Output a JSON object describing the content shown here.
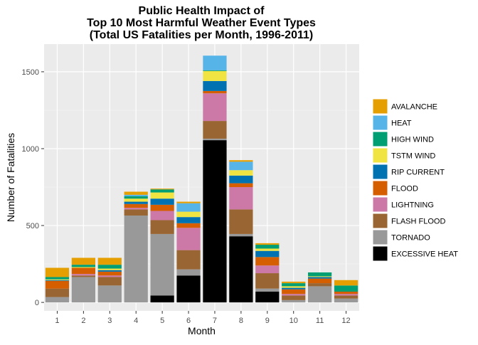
{
  "chart_data": {
    "type": "bar",
    "stacked": true,
    "title": [
      "Public Health Impact of",
      "Top 10 Most Harmful Weather Event Types",
      "(Total US Fatalities per Month, 1996-2011)"
    ],
    "xlabel": "Month",
    "ylabel": "Number of Fatalities",
    "categories": [
      "1",
      "2",
      "3",
      "4",
      "5",
      "6",
      "7",
      "8",
      "9",
      "10",
      "11",
      "12"
    ],
    "y_ticks": [
      0,
      500,
      1000,
      1500
    ],
    "ylim": [
      -55,
      1680
    ],
    "grid": true,
    "legend_position": "right",
    "series": [
      {
        "name": "EXCESSIVE HEAT",
        "color": "#000000",
        "values": [
          0,
          0,
          0,
          0,
          45,
          175,
          1055,
          430,
          70,
          0,
          0,
          0
        ]
      },
      {
        "name": "TORNADO",
        "color": "#999999",
        "values": [
          35,
          165,
          110,
          565,
          400,
          40,
          10,
          15,
          20,
          15,
          105,
          25
        ]
      },
      {
        "name": "FLASH FLOOD",
        "color": "#996633",
        "values": [
          55,
          10,
          55,
          40,
          90,
          125,
          115,
          160,
          100,
          30,
          20,
          20
        ]
      },
      {
        "name": "LIGHTNING",
        "color": "#CC79A7",
        "values": [
          0,
          10,
          10,
          10,
          60,
          145,
          180,
          145,
          50,
          10,
          0,
          10
        ]
      },
      {
        "name": "FLOOD",
        "color": "#D55E00",
        "values": [
          50,
          40,
          25,
          25,
          40,
          30,
          15,
          25,
          55,
          30,
          30,
          15
        ]
      },
      {
        "name": "RIP CURRENT",
        "color": "#0072B2",
        "values": [
          5,
          0,
          10,
          15,
          40,
          40,
          65,
          50,
          40,
          10,
          10,
          0
        ]
      },
      {
        "name": "TSTM WIND",
        "color": "#F0E442",
        "values": [
          5,
          5,
          10,
          20,
          40,
          35,
          65,
          35,
          15,
          10,
          5,
          0
        ]
      },
      {
        "name": "HIGH WIND",
        "color": "#009E73",
        "values": [
          15,
          15,
          25,
          15,
          20,
          0,
          5,
          0,
          25,
          20,
          25,
          40
        ]
      },
      {
        "name": "HEAT",
        "color": "#56B4E9",
        "values": [
          0,
          0,
          0,
          10,
          0,
          55,
          95,
          55,
          0,
          0,
          0,
          0
        ]
      },
      {
        "name": "AVALANCHE",
        "color": "#E69F00",
        "values": [
          60,
          45,
          45,
          20,
          5,
          10,
          0,
          10,
          10,
          10,
          0,
          35
        ]
      }
    ]
  }
}
